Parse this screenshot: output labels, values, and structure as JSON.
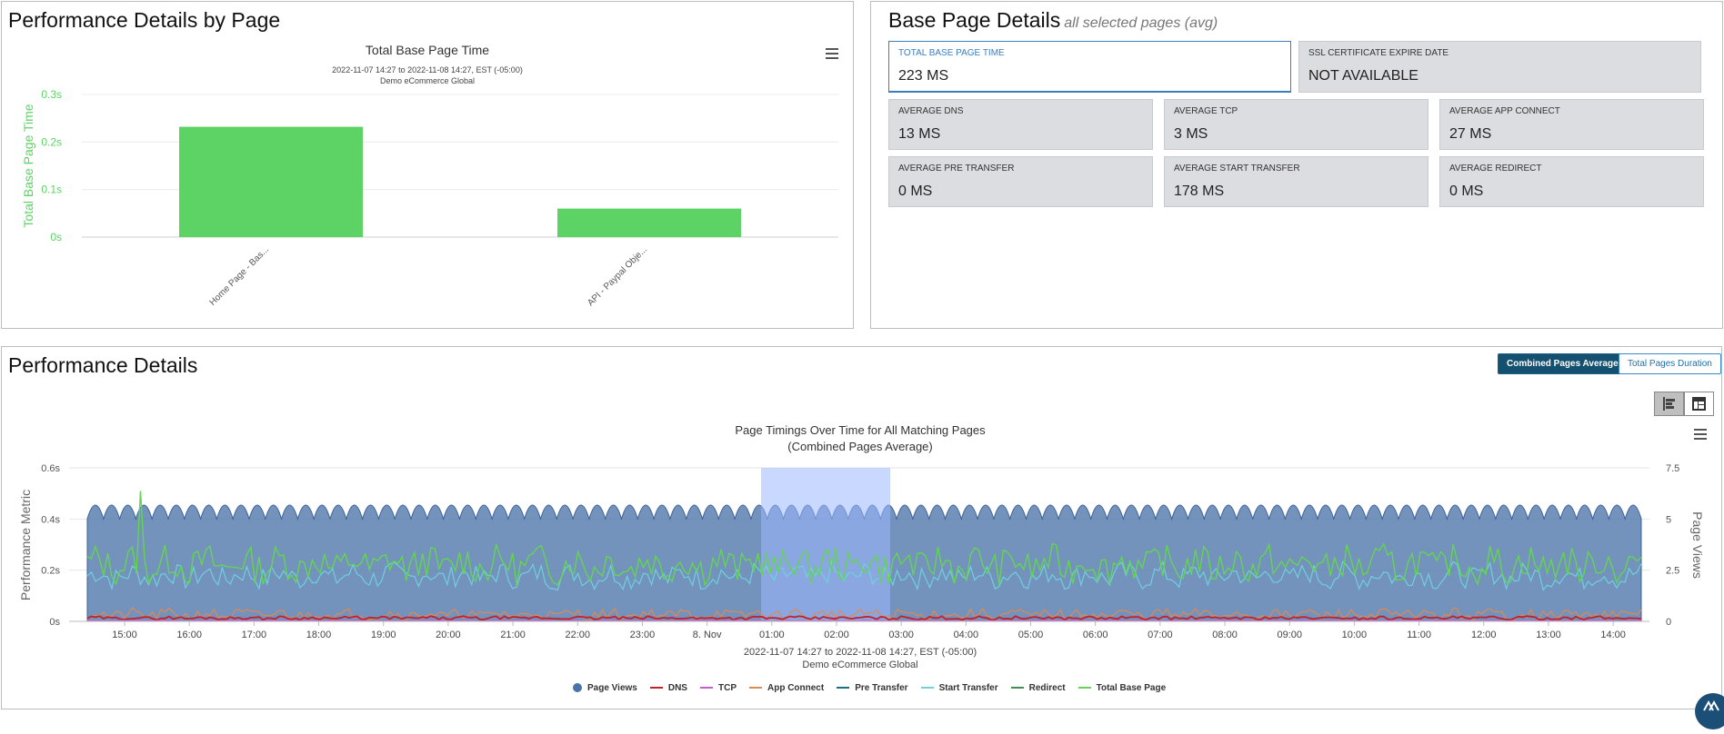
{
  "perf_by_page": {
    "title": "Performance Details by Page",
    "chart_data": {
      "type": "bar",
      "title": "Total Base Page Time",
      "subtitle": "2022-11-07 14:27 to 2022-11-08 14:27, EST (-05:00)",
      "subtitle2": "Demo eCommerce Global",
      "xlabel": "",
      "ylabel": "Total Base Page Time",
      "categories": [
        "Home Page - Bas...",
        "API - Paypal Obje..."
      ],
      "values": [
        0.232,
        0.06
      ],
      "yticks": [
        "0s",
        "0.1s",
        "0.2s",
        "0.3s"
      ],
      "ylim": [
        0,
        0.3
      ],
      "bar_color": "#5cd364",
      "grid": true
    }
  },
  "base_page": {
    "title": "Base Page Details",
    "subtitle": "all selected pages (avg)",
    "stats": [
      {
        "label": "TOTAL BASE PAGE TIME",
        "value": "223 MS"
      },
      {
        "label": "SSL CERTIFICATE EXPIRE DATE",
        "value": "NOT AVAILABLE"
      },
      {
        "label": "AVERAGE DNS",
        "value": "13 MS"
      },
      {
        "label": "AVERAGE TCP",
        "value": "3 MS"
      },
      {
        "label": "AVERAGE APP CONNECT",
        "value": "27 MS"
      },
      {
        "label": "AVERAGE PRE TRANSFER",
        "value": "0 MS"
      },
      {
        "label": "AVERAGE START TRANSFER",
        "value": "178 MS"
      },
      {
        "label": "AVERAGE REDIRECT",
        "value": "0 MS"
      }
    ]
  },
  "perf_details": {
    "title": "Performance Details",
    "btn_combined": "Combined Pages Average",
    "btn_total": "Total Pages Duration",
    "chart_data": {
      "type": "area",
      "title": "Page Timings Over Time for All Matching Pages",
      "title2": "(Combined Pages Average)",
      "subtitle": "2022-11-07 14:27 to 2022-11-08 14:27, EST (-05:00)",
      "subtitle2": "Demo eCommerce Global",
      "ylabel_left": "Performance Metric",
      "ylabel_right": "Page Views",
      "yticks_left": [
        "0s",
        "0.2s",
        "0.4s",
        "0.6s"
      ],
      "yticks_right": [
        "0",
        "2.5",
        "5",
        "7.5"
      ],
      "ylim_left": [
        0,
        0.6
      ],
      "ylim_right": [
        0,
        7.5
      ],
      "x_ticks": [
        "15:00",
        "16:00",
        "17:00",
        "18:00",
        "19:00",
        "20:00",
        "21:00",
        "22:00",
        "23:00",
        "8. Nov",
        "01:00",
        "02:00",
        "03:00",
        "04:00",
        "05:00",
        "06:00",
        "07:00",
        "08:00",
        "09:00",
        "10:00",
        "11:00",
        "12:00",
        "13:00",
        "14:00"
      ],
      "x_range": [
        "2022-11-07 14:27",
        "2022-11-08 14:27"
      ],
      "highlight_band": [
        "2022-11-08 00:45",
        "2022-11-08 02:45"
      ],
      "series": [
        {
          "name": "Page Views",
          "color": "#4a74a8",
          "symbol": "dot",
          "approx_range": [
            5,
            6
          ],
          "period_min": 15
        },
        {
          "name": "DNS",
          "color": "#c0212b",
          "approx_mean": 0.013
        },
        {
          "name": "TCP",
          "color": "#c95ad0",
          "approx_mean": 0.003
        },
        {
          "name": "App Connect",
          "color": "#dd8a52",
          "approx_mean": 0.027
        },
        {
          "name": "Pre Transfer",
          "color": "#1d6f7f",
          "approx_mean": 0
        },
        {
          "name": "Start Transfer",
          "color": "#6fd0dc",
          "approx_mean": 0.178
        },
        {
          "name": "Redirect",
          "color": "#3f8f53",
          "approx_mean": 0
        },
        {
          "name": "Total Base Page",
          "color": "#63d453",
          "approx_mean": 0.223
        }
      ]
    }
  }
}
